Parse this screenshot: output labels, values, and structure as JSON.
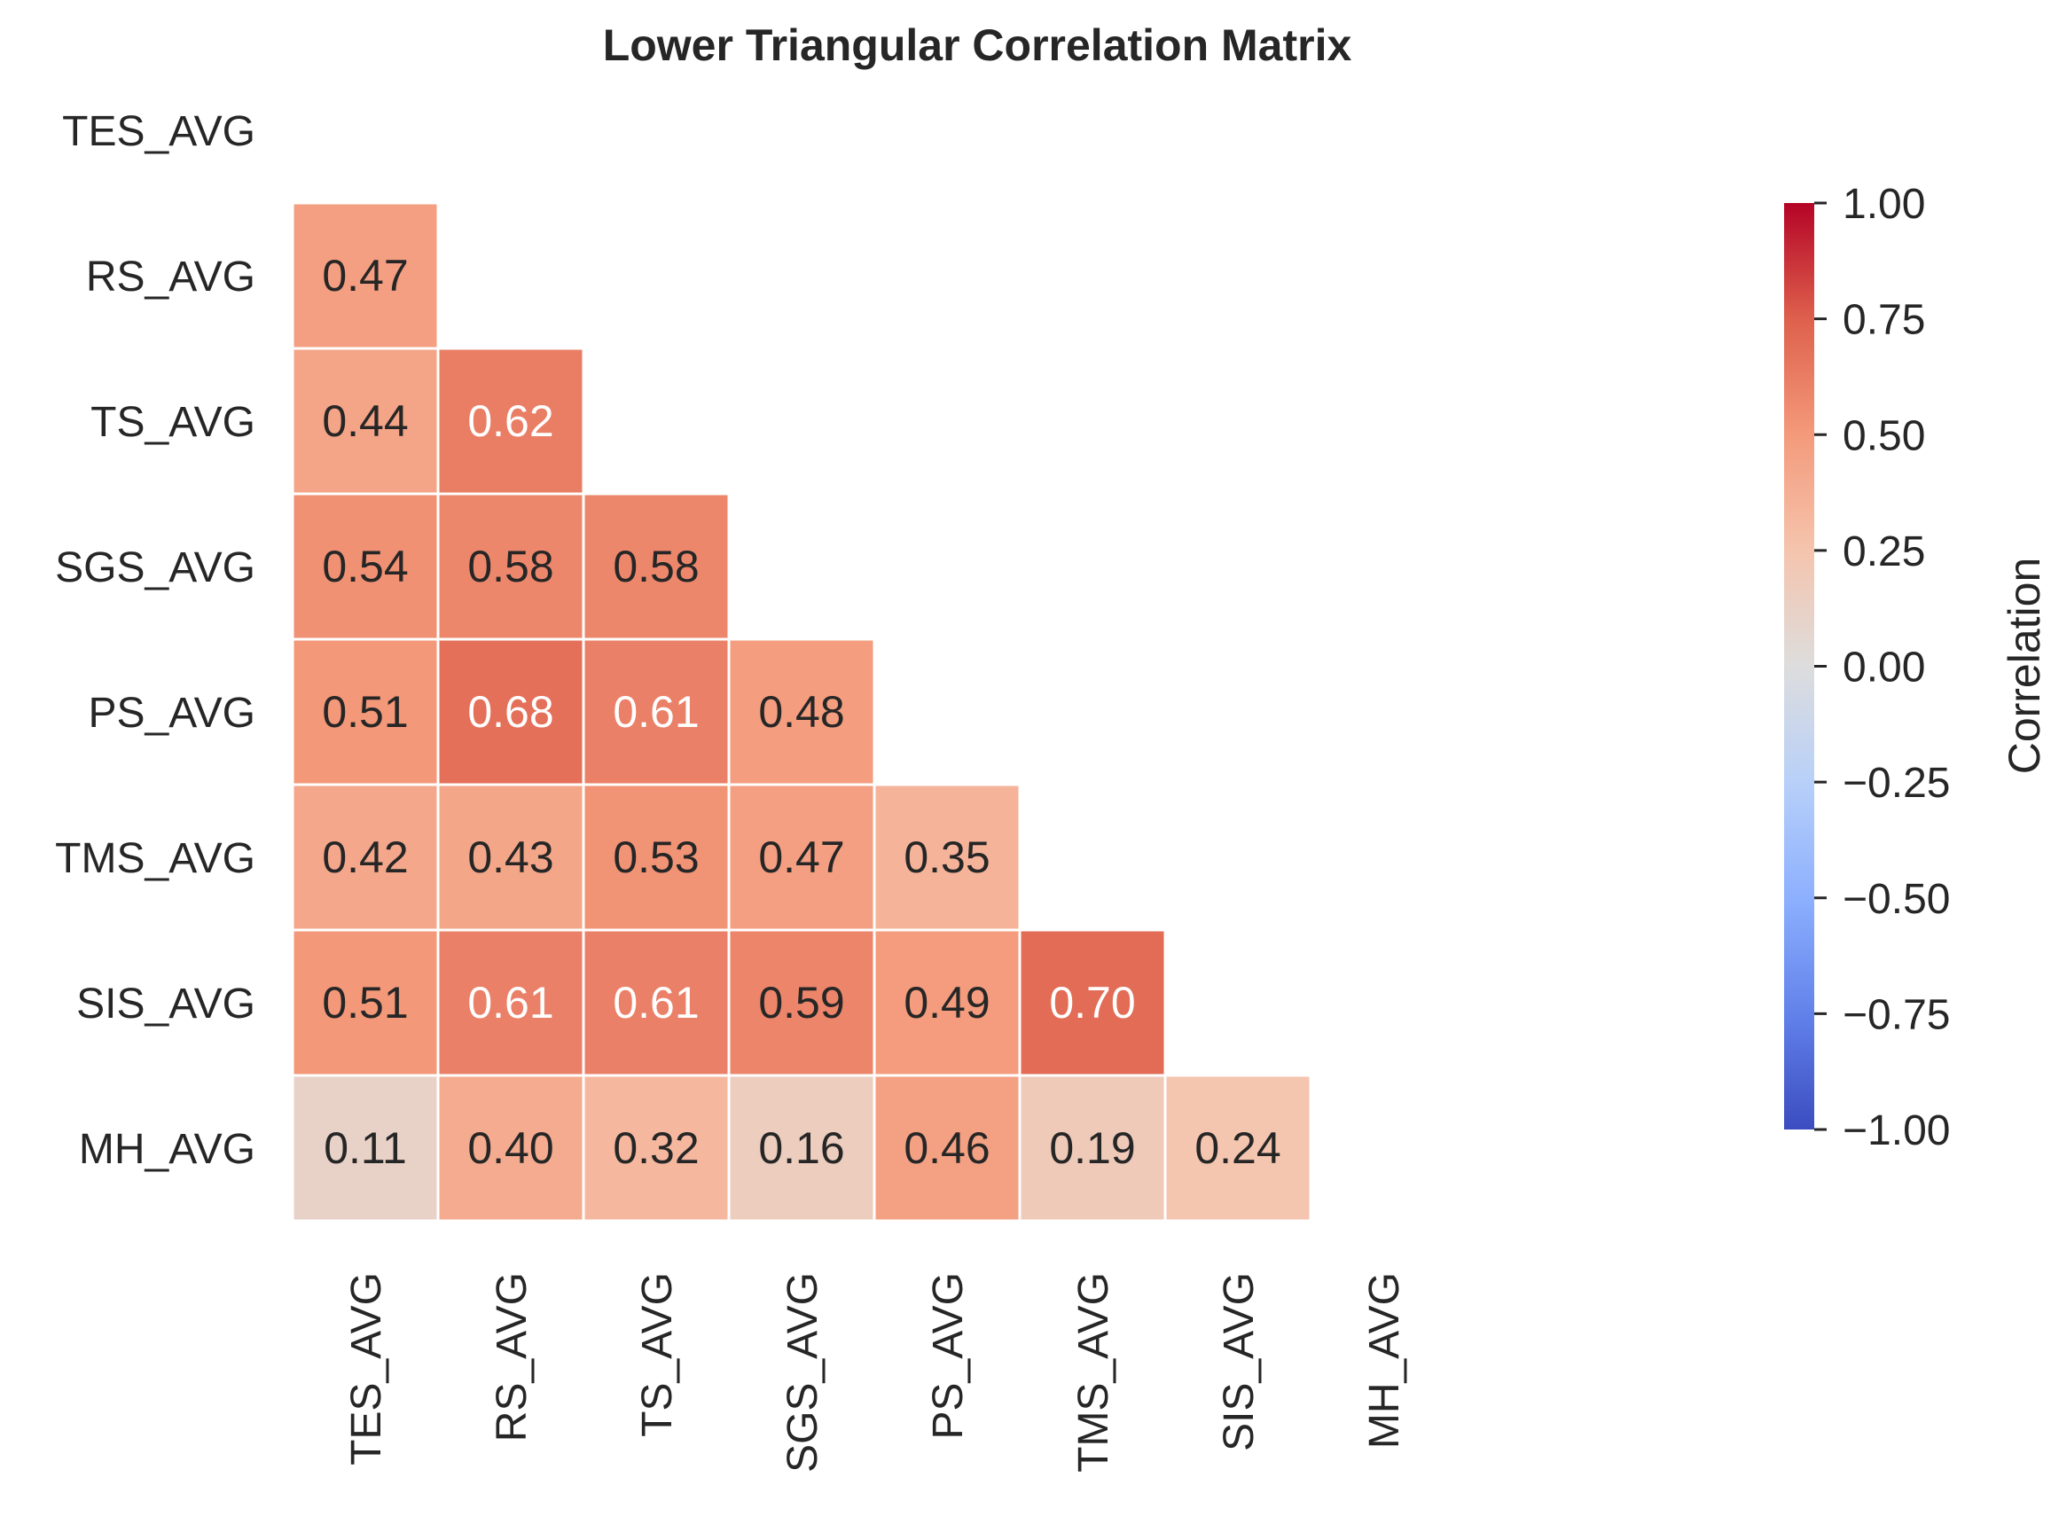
{
  "chart_data": {
    "type": "heatmap",
    "title": "Lower Triangular Correlation Matrix",
    "xlabel": "",
    "ylabel": "",
    "variables": [
      "TES_AVG",
      "RS_AVG",
      "TS_AVG",
      "SGS_AVG",
      "PS_AVG",
      "TMS_AVG",
      "SIS_AVG",
      "MH_AVG"
    ],
    "mask": "upper triangle including diagonal",
    "matrix": [
      [
        null,
        null,
        null,
        null,
        null,
        null,
        null,
        null
      ],
      [
        0.47,
        null,
        null,
        null,
        null,
        null,
        null,
        null
      ],
      [
        0.44,
        0.62,
        null,
        null,
        null,
        null,
        null,
        null
      ],
      [
        0.54,
        0.58,
        0.58,
        null,
        null,
        null,
        null,
        null
      ],
      [
        0.51,
        0.68,
        0.61,
        0.48,
        null,
        null,
        null,
        null
      ],
      [
        0.42,
        0.43,
        0.53,
        0.47,
        0.35,
        null,
        null,
        null
      ],
      [
        0.51,
        0.61,
        0.61,
        0.59,
        0.49,
        0.7,
        null,
        null
      ],
      [
        0.11,
        0.4,
        0.32,
        0.16,
        0.46,
        0.19,
        0.24,
        null
      ]
    ],
    "annotation_format": "0.00",
    "colormap": "coolwarm",
    "vmin": -1.0,
    "vmax": 1.0,
    "colorbar": {
      "label": "Correlation",
      "ticks": [
        1.0,
        0.75,
        0.5,
        0.25,
        0.0,
        -0.25,
        -0.5,
        -0.75,
        -1.0
      ],
      "tick_labels": [
        "1.00",
        "0.75",
        "0.50",
        "0.25",
        "0.00",
        "−0.25",
        "−0.50",
        "−0.75",
        "−1.00"
      ],
      "position": "right"
    },
    "grid": false,
    "cell_line_color": "#ffffff",
    "text_colors": {
      "dark": "#262626",
      "light": "#ffffff"
    }
  }
}
